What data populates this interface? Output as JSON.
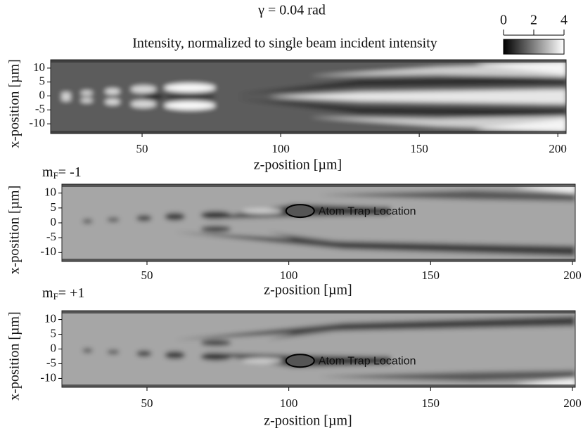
{
  "title": "γ = 0.04 rad",
  "colorbar": {
    "title": "Intensity, normalized to single beam incident intensity",
    "lim": [
      0,
      4
    ],
    "ticks": [
      0,
      2,
      4
    ],
    "colors": [
      "#000000",
      "#ffffff"
    ]
  },
  "chart_data": [
    {
      "type": "heatmap",
      "xlabel": "z-position [µm]",
      "ylabel": "x-position [µm]",
      "xlim": [
        17,
        203
      ],
      "ylim": [
        -13.5,
        13
      ],
      "xticks": [
        50,
        100,
        150,
        200
      ],
      "yticks": [
        10,
        5,
        0,
        -5,
        -10
      ]
    },
    {
      "type": "heatmap",
      "panel_label": {
        "main": "m",
        "sub": "F",
        "rest": "= -1"
      },
      "xlabel": "z-position [µm]",
      "ylabel": "x-position [µm]",
      "xlim": [
        20,
        201
      ],
      "ylim": [
        -13,
        13
      ],
      "xticks": [
        50,
        100,
        150,
        200
      ],
      "yticks": [
        10,
        5,
        0,
        -5,
        -10
      ],
      "annotation": {
        "text": "Atom Trap Location",
        "z": 104,
        "x": 4
      }
    },
    {
      "type": "heatmap",
      "panel_label": {
        "main": "m",
        "sub": "F",
        "rest": "= +1"
      },
      "xlabel": "z-position [µm]",
      "ylabel": "x-position [µm]",
      "xlim": [
        20,
        201
      ],
      "ylim": [
        -13,
        13
      ],
      "xticks": [
        50,
        100,
        150,
        200
      ],
      "yticks": [
        10,
        5,
        0,
        -5,
        -10
      ],
      "annotation": {
        "text": "Atom Trap Location",
        "z": 104,
        "x": -4
      }
    }
  ]
}
